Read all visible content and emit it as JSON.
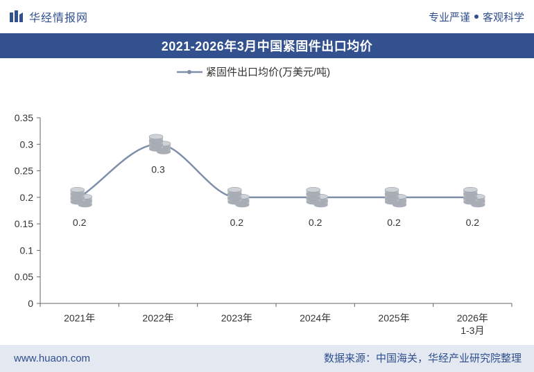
{
  "header": {
    "brand_name": "华经情报网",
    "tag_left": "专业严谨",
    "tag_right": "客观科学"
  },
  "footer": {
    "website": "www.huaon.com",
    "source": "数据来源：中国海关，华经产业研究院整理"
  },
  "colors": {
    "brand_blue": "#34518f",
    "line": "#7f8fa9",
    "coin": "#cfd3d8"
  },
  "chart_data": {
    "type": "line",
    "title": "2021-2026年3月中国紧固件出口均价",
    "xlabel": "",
    "ylabel": "",
    "categories": [
      [
        "2021年"
      ],
      [
        "2022年"
      ],
      [
        "2023年"
      ],
      [
        "2024年"
      ],
      [
        "2025年"
      ],
      [
        "2026年",
        "1-3月"
      ]
    ],
    "series": [
      {
        "name": "紧固件出口均价(万美元/吨)",
        "values": [
          0.2,
          0.3,
          0.2,
          0.2,
          0.2,
          0.2
        ]
      }
    ],
    "data_labels": [
      "0.2",
      "0.3",
      "0.2",
      "0.2",
      "0.2",
      "0.2"
    ],
    "y_ticks": [
      "0",
      "0.05",
      "0.1",
      "0.15",
      "0.2",
      "0.25",
      "0.3",
      "0.35"
    ],
    "ylim": [
      0,
      0.35
    ],
    "grid": false,
    "legend_position": "top-center",
    "smooth": true,
    "marker": "coin-stack"
  }
}
